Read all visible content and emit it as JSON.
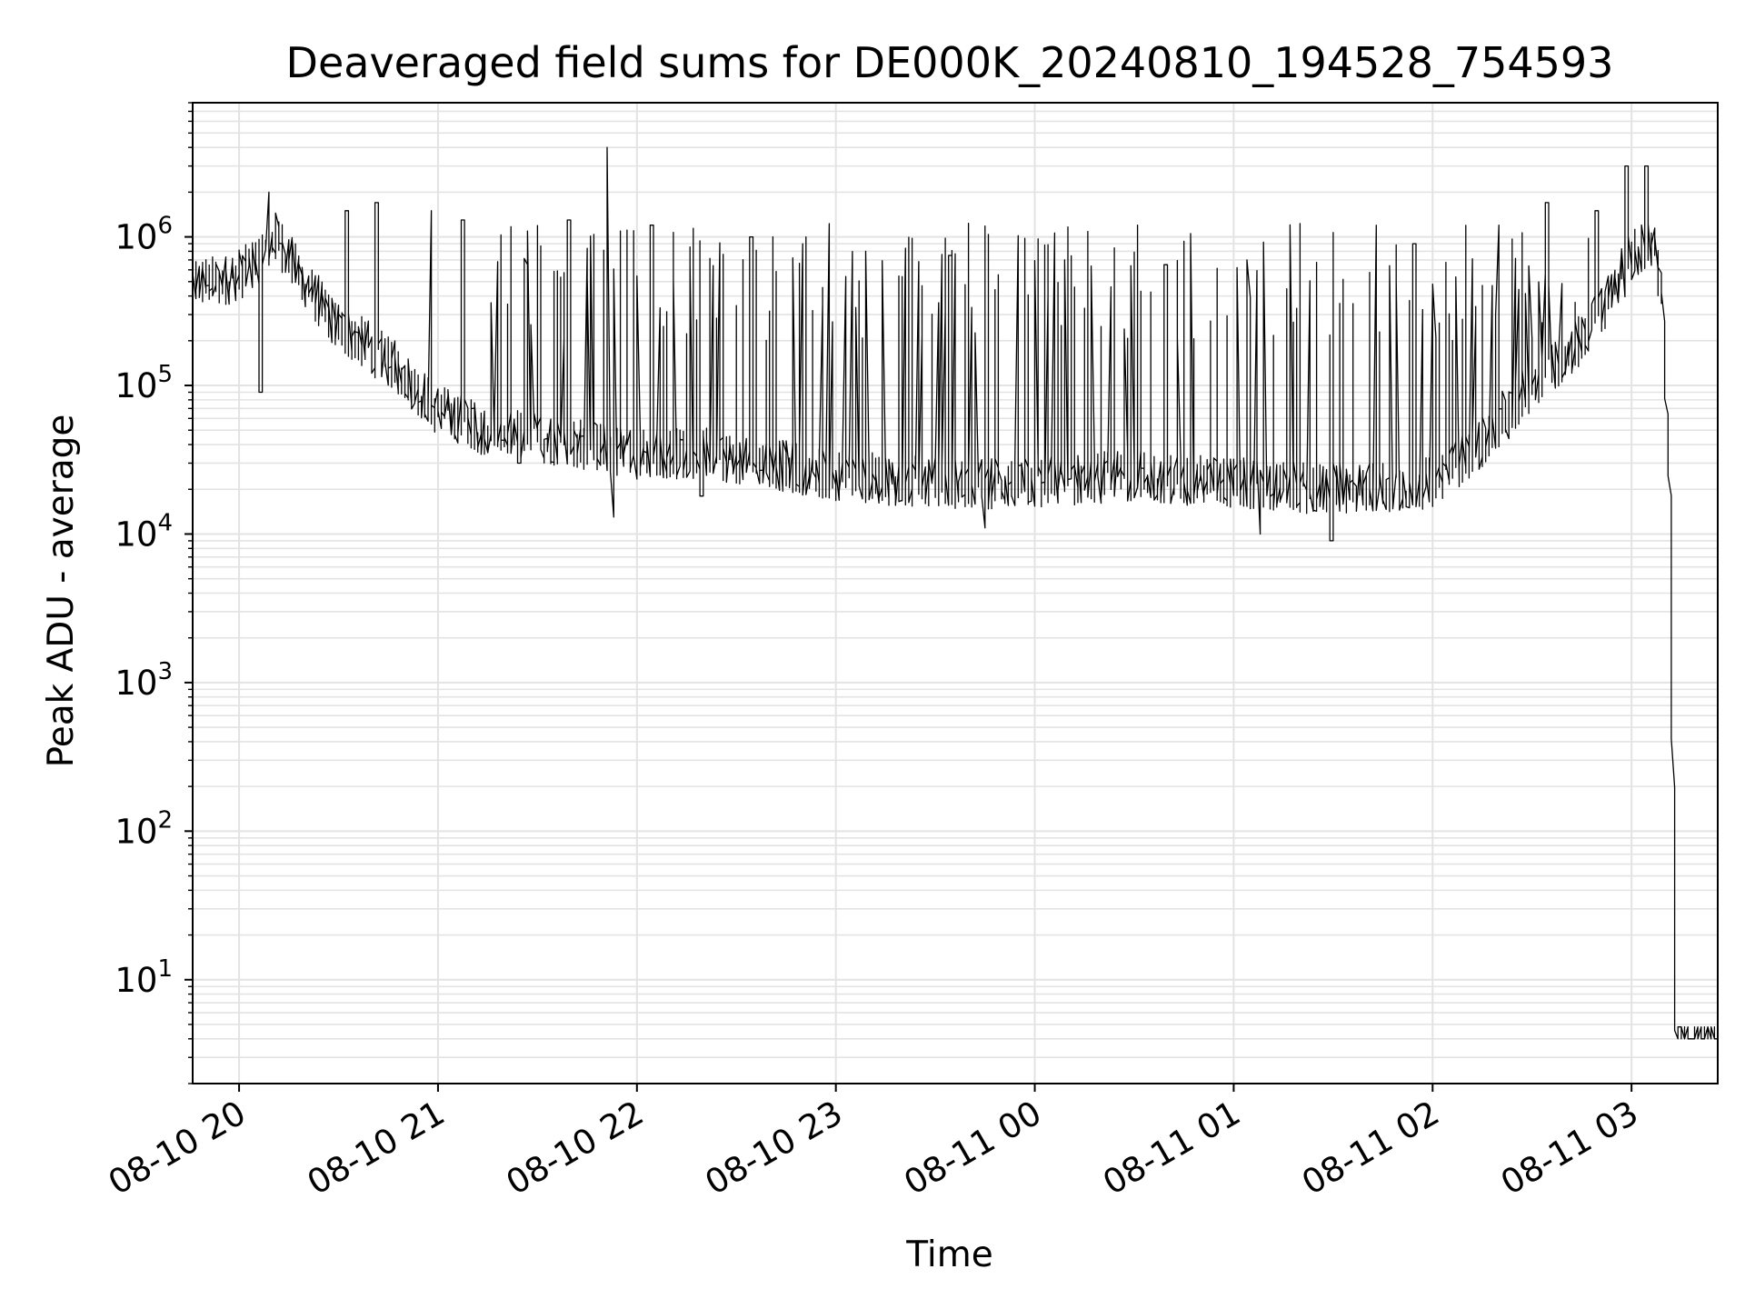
{
  "chart_data": {
    "type": "line",
    "title": "Deaveraged field sums for DE000K_20240810_194528_754593",
    "xlabel": "Time",
    "ylabel": "Peak ADU - average",
    "yscale": "log",
    "grid": true,
    "line_color": "#000000",
    "grid_color": "#e3e3e3",
    "xlim": [
      "2024-08-10 19:46",
      "2024-08-11 03:26"
    ],
    "ylim": [
      2,
      8000000
    ],
    "x_ticks": [
      {
        "time": "2024-08-10 20:00",
        "label": "08-10 20"
      },
      {
        "time": "2024-08-10 21:00",
        "label": "08-10 21"
      },
      {
        "time": "2024-08-10 22:00",
        "label": "08-10 22"
      },
      {
        "time": "2024-08-10 23:00",
        "label": "08-10 23"
      },
      {
        "time": "2024-08-11 00:00",
        "label": "08-11 00"
      },
      {
        "time": "2024-08-11 01:00",
        "label": "08-11 01"
      },
      {
        "time": "2024-08-11 02:00",
        "label": "08-11 02"
      },
      {
        "time": "2024-08-11 03:00",
        "label": "08-11 03"
      }
    ],
    "y_ticks": [
      {
        "value": 10,
        "base": "10",
        "exp": "1"
      },
      {
        "value": 100,
        "base": "10",
        "exp": "2"
      },
      {
        "value": 1000,
        "base": "10",
        "exp": "3"
      },
      {
        "value": 10000,
        "base": "10",
        "exp": "4"
      },
      {
        "value": 100000,
        "base": "10",
        "exp": "5"
      },
      {
        "value": 1000000,
        "base": "10",
        "exp": "6"
      }
    ],
    "series": [
      {
        "points": [
          {
            "x": "2024-08-10 19:46",
            "y": 500000
          },
          {
            "x": "2024-08-10 19:55",
            "y": 500000
          },
          {
            "x": "2024-08-10 20:03",
            "y": 600000
          },
          {
            "x": "2024-08-10 20:12",
            "y": 1000000
          },
          {
            "x": "2024-08-10 20:20",
            "y": 500000
          },
          {
            "x": "2024-08-10 20:30",
            "y": 250000
          },
          {
            "x": "2024-08-10 20:40",
            "y": 180000
          },
          {
            "x": "2024-08-10 20:50",
            "y": 120000
          },
          {
            "x": "2024-08-10 21:00",
            "y": 70000
          },
          {
            "x": "2024-08-10 21:15",
            "y": 50000
          },
          {
            "x": "2024-08-10 21:30",
            "y": 45000
          },
          {
            "x": "2024-08-10 21:45",
            "y": 40000
          },
          {
            "x": "2024-08-10 22:00",
            "y": 35000
          },
          {
            "x": "2024-08-10 22:20",
            "y": 35000
          },
          {
            "x": "2024-08-10 22:40",
            "y": 30000
          },
          {
            "x": "2024-08-10 23:00",
            "y": 25000
          },
          {
            "x": "2024-08-10 23:30",
            "y": 22000
          },
          {
            "x": "2024-08-11 00:00",
            "y": 22000
          },
          {
            "x": "2024-08-11 00:30",
            "y": 25000
          },
          {
            "x": "2024-08-11 01:00",
            "y": 22000
          },
          {
            "x": "2024-08-11 01:30",
            "y": 20000
          },
          {
            "x": "2024-08-11 02:00",
            "y": 22000
          },
          {
            "x": "2024-08-11 02:15",
            "y": 40000
          },
          {
            "x": "2024-08-11 02:30",
            "y": 100000
          },
          {
            "x": "2024-08-11 02:45",
            "y": 200000
          },
          {
            "x": "2024-08-11 02:55",
            "y": 450000
          },
          {
            "x": "2024-08-11 03:00",
            "y": 700000
          },
          {
            "x": "2024-08-11 03:05",
            "y": 900000
          },
          {
            "x": "2024-08-11 03:08",
            "y": 800000
          },
          {
            "x": "2024-08-11 03:10",
            "y": 300000
          },
          {
            "x": "2024-08-11 03:12",
            "y": 20000
          },
          {
            "x": "2024-08-11 03:14",
            "y": 4
          },
          {
            "x": "2024-08-11 03:26",
            "y": 4
          }
        ],
        "spikes": [
          {
            "x": "2024-08-10 20:09",
            "y": 2000000
          },
          {
            "x": "2024-08-10 20:33",
            "y": 1500000
          },
          {
            "x": "2024-08-10 20:42",
            "y": 1700000
          },
          {
            "x": "2024-08-10 20:58",
            "y": 1500000
          },
          {
            "x": "2024-08-10 21:08",
            "y": 1300000
          },
          {
            "x": "2024-08-10 21:25",
            "y": 1400000
          },
          {
            "x": "2024-08-10 21:40",
            "y": 1300000
          },
          {
            "x": "2024-08-10 21:52",
            "y": 4000000
          },
          {
            "x": "2024-08-10 21:53",
            "y": 3800000
          },
          {
            "x": "2024-08-10 22:05",
            "y": 1200000
          },
          {
            "x": "2024-08-10 22:20",
            "y": 1100000
          },
          {
            "x": "2024-08-10 22:35",
            "y": 1000000
          },
          {
            "x": "2024-08-10 22:50",
            "y": 900000
          },
          {
            "x": "2024-08-10 23:10",
            "y": 800000
          },
          {
            "x": "2024-08-10 23:35",
            "y": 750000
          },
          {
            "x": "2024-08-11 00:10",
            "y": 700000
          },
          {
            "x": "2024-08-11 00:40",
            "y": 650000
          },
          {
            "x": "2024-08-11 01:05",
            "y": 700000
          },
          {
            "x": "2024-08-11 01:30",
            "y": 800000
          },
          {
            "x": "2024-08-11 01:55",
            "y": 900000
          },
          {
            "x": "2024-08-11 02:20",
            "y": 1200000
          },
          {
            "x": "2024-08-11 02:35",
            "y": 1700000
          },
          {
            "x": "2024-08-11 02:50",
            "y": 1500000
          },
          {
            "x": "2024-08-11 02:59",
            "y": 3000000
          },
          {
            "x": "2024-08-11 03:05",
            "y": 3000000
          }
        ],
        "dips": [
          {
            "x": "2024-08-10 20:07",
            "y": 90000
          },
          {
            "x": "2024-08-10 21:25",
            "y": 30000
          },
          {
            "x": "2024-08-10 21:53",
            "y": 13000
          },
          {
            "x": "2024-08-10 22:20",
            "y": 18000
          },
          {
            "x": "2024-08-10 23:45",
            "y": 11000
          },
          {
            "x": "2024-08-11 01:08",
            "y": 10000
          },
          {
            "x": "2024-08-11 01:30",
            "y": 9000
          }
        ]
      }
    ]
  }
}
